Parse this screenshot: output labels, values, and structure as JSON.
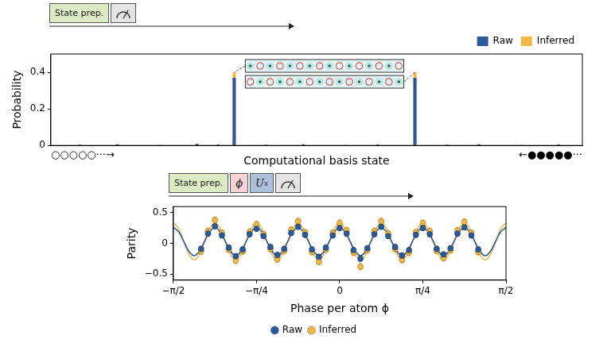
{
  "chart_data": [
    {
      "type": "bar",
      "circuit": [
        "State prep."
      ],
      "x_label": "Computational basis state",
      "y_label": "Probability",
      "annotations": [
        "○○○○○···→",
        "←●●●●●···"
      ],
      "categories": [
        null,
        null,
        null,
        null,
        null,
        null,
        null,
        null,
        null,
        null,
        null,
        null,
        null,
        null,
        null,
        null,
        null,
        null,
        null,
        null,
        null,
        null,
        null,
        null,
        null,
        null,
        null,
        null,
        null,
        null,
        null,
        null,
        null,
        null,
        null,
        null,
        null,
        null,
        null,
        null,
        null,
        null,
        null,
        null,
        null,
        null,
        null,
        null,
        null,
        null,
        null,
        null,
        null,
        null,
        null,
        null,
        null,
        null,
        null,
        null,
        null,
        null,
        null,
        null,
        null,
        null,
        null,
        null,
        null,
        null,
        null,
        null,
        null,
        null,
        null,
        null,
        null,
        null,
        null,
        null,
        null,
        null,
        null,
        null,
        null,
        null,
        null,
        null,
        null,
        null,
        null,
        null,
        null,
        null,
        null,
        null,
        null,
        null,
        null,
        null
      ],
      "series": [
        {
          "name": "Raw",
          "color": "#2b5a9c",
          "values": [
            0,
            0,
            0,
            0,
            0,
            0.004,
            0,
            0,
            0,
            0,
            0,
            0,
            0.006,
            0,
            0,
            0,
            0,
            0,
            0,
            0,
            0.003,
            0,
            0,
            0,
            0,
            0,
            0,
            0.008,
            0,
            0,
            0,
            0.005,
            0,
            0,
            0.37,
            0,
            0,
            0,
            0,
            0,
            0.004,
            0,
            0,
            0,
            0,
            0,
            0,
            0.006,
            0,
            0,
            0,
            0,
            0,
            0,
            0,
            0.003,
            0,
            0,
            0,
            0,
            0,
            0.005,
            0,
            0,
            0,
            0,
            0,
            0,
            0.37,
            0,
            0,
            0,
            0,
            0,
            0.004,
            0,
            0,
            0,
            0,
            0,
            0.006,
            0,
            0,
            0,
            0,
            0,
            0,
            0,
            0.003,
            0,
            0,
            0,
            0,
            0,
            0,
            0.005,
            0,
            0,
            0,
            0
          ]
        },
        {
          "name": "Inferred",
          "color": "#f4b942",
          "values": [
            0,
            0,
            0,
            0,
            0,
            0.004,
            0,
            0,
            0,
            0,
            0,
            0,
            0.006,
            0,
            0,
            0,
            0,
            0,
            0,
            0,
            0.003,
            0,
            0,
            0,
            0,
            0,
            0,
            0.008,
            0,
            0,
            0,
            0.005,
            0,
            0,
            0.4,
            0,
            0,
            0,
            0,
            0,
            0.004,
            0,
            0,
            0,
            0,
            0,
            0,
            0.006,
            0,
            0,
            0,
            0,
            0,
            0,
            0,
            0.003,
            0,
            0,
            0,
            0,
            0,
            0.005,
            0,
            0,
            0,
            0,
            0,
            0,
            0.4,
            0,
            0,
            0,
            0,
            0,
            0.004,
            0,
            0,
            0,
            0,
            0,
            0.006,
            0,
            0,
            0,
            0,
            0,
            0,
            0,
            0.003,
            0,
            0,
            0,
            0,
            0,
            0,
            0.005,
            0,
            0,
            0,
            0
          ]
        }
      ],
      "ylim": [
        0,
        0.5
      ],
      "yticks": [
        0,
        0.2,
        0.4
      ],
      "tick_labels": "y",
      "legend": "top-right",
      "grid": false
    },
    {
      "type": "scatter",
      "circuit": [
        "State prep.",
        "ϕ",
        {
          "text": "U",
          "subscript": "x"
        }
      ],
      "x_label": "Phase per atom ϕ",
      "y_label": "Parity",
      "series": [
        {
          "name": "Raw",
          "color": "#2b5a9c",
          "marker": "circle",
          "error": 0.04,
          "x": [
            -1.309,
            -1.2435,
            -1.1781,
            -1.1126,
            -1.0472,
            -0.9817,
            -0.9163,
            -0.8508,
            -0.7854,
            -0.7199,
            -0.6545,
            -0.589,
            -0.5236,
            -0.4581,
            -0.3927,
            -0.3272,
            -0.2618,
            -0.1963,
            -0.1309,
            -0.0654,
            0,
            0.0654,
            0.1309,
            0.1963,
            0.2618,
            0.3272,
            0.3927,
            0.4581,
            0.5236,
            0.589,
            0.6545,
            0.7199,
            0.7854,
            0.8508,
            0.9163,
            0.9817,
            1.0472,
            1.1126,
            1.1781,
            1.2435,
            1.309
          ],
          "values": [
            -0.09,
            0.16,
            0.28,
            0.13,
            -0.07,
            -0.21,
            -0.1,
            0.15,
            0.24,
            0.12,
            -0.06,
            -0.19,
            -0.09,
            0.17,
            0.27,
            0.14,
            -0.1,
            -0.22,
            -0.07,
            0.13,
            0.25,
            0.16,
            -0.11,
            -0.25,
            -0.08,
            0.15,
            0.27,
            0.12,
            -0.06,
            -0.2,
            -0.11,
            0.14,
            0.25,
            0.15,
            -0.09,
            -0.18,
            -0.08,
            0.16,
            0.26,
            0.13,
            -0.1
          ],
          "fit": {
            "x": [
              -1.5708,
              -1.5217,
              -1.4726,
              -1.4235,
              -1.3744,
              -1.3254,
              -1.2763,
              -1.2272,
              -1.1781,
              -1.129,
              -1.0799,
              -1.0308,
              -0.9817,
              -0.9327,
              -0.8836,
              -0.8345,
              -0.7854,
              -0.7363,
              -0.6872,
              -0.6381,
              -0.589,
              -0.54,
              -0.4909,
              -0.4418,
              -0.3927,
              -0.3436,
              -0.2945,
              -0.2454,
              -0.1963,
              -0.1473,
              -0.0982,
              -0.0491,
              0,
              0.0491,
              0.0982,
              0.1473,
              0.1963,
              0.2454,
              0.2945,
              0.3436,
              0.3927,
              0.4418,
              0.4909,
              0.54,
              0.589,
              0.6381,
              0.6872,
              0.7363,
              0.7854,
              0.8345,
              0.8836,
              0.9327,
              0.9817,
              1.0308,
              1.0799,
              1.129,
              1.1781,
              1.2272,
              1.2763,
              1.3254,
              1.3744,
              1.4235,
              1.4726,
              1.5217,
              1.5708
            ],
            "values": [
              0.26,
              0.19,
              0.03,
              -0.13,
              -0.2,
              -0.13,
              0.03,
              0.19,
              0.26,
              0.19,
              0.03,
              -0.13,
              -0.2,
              -0.13,
              0.03,
              0.19,
              0.26,
              0.19,
              0.03,
              -0.13,
              -0.2,
              -0.13,
              0.03,
              0.19,
              0.26,
              0.19,
              0.03,
              -0.13,
              -0.2,
              -0.13,
              0.03,
              0.19,
              0.26,
              0.19,
              0.03,
              -0.13,
              -0.2,
              -0.13,
              0.03,
              0.19,
              0.26,
              0.19,
              0.03,
              -0.13,
              -0.2,
              -0.13,
              0.03,
              0.19,
              0.26,
              0.19,
              0.03,
              -0.13,
              -0.2,
              -0.13,
              0.03,
              0.19,
              0.26,
              0.19,
              0.03,
              -0.13,
              -0.2,
              -0.13,
              0.03,
              0.19,
              0.26
            ]
          }
        },
        {
          "name": "Inferred",
          "color": "#f4b942",
          "marker": "circle",
          "error": 0.05,
          "x": [
            -1.309,
            -1.2435,
            -1.1781,
            -1.1126,
            -1.0472,
            -0.9817,
            -0.9163,
            -0.8508,
            -0.7854,
            -0.7199,
            -0.6545,
            -0.589,
            -0.5236,
            -0.4581,
            -0.3927,
            -0.3272,
            -0.2618,
            -0.1963,
            -0.1309,
            -0.0654,
            0,
            0.0654,
            0.1309,
            0.1963,
            0.2618,
            0.3272,
            0.3927,
            0.4581,
            0.5236,
            0.589,
            0.6545,
            0.7199,
            0.7854,
            0.8508,
            0.9163,
            0.9817,
            1.0472,
            1.1126,
            1.1781,
            1.2435,
            1.309
          ],
          "values": [
            -0.13,
            0.2,
            0.38,
            0.17,
            -0.1,
            -0.28,
            -0.13,
            0.19,
            0.31,
            0.15,
            -0.09,
            -0.26,
            -0.12,
            0.22,
            0.36,
            0.18,
            -0.14,
            -0.3,
            -0.1,
            0.17,
            0.33,
            0.21,
            -0.15,
            -0.38,
            -0.11,
            0.2,
            0.36,
            0.16,
            -0.09,
            -0.27,
            -0.15,
            0.18,
            0.33,
            0.2,
            -0.12,
            -0.24,
            -0.11,
            0.21,
            0.35,
            0.17,
            -0.14
          ],
          "fit": {
            "x": [
              -1.5708,
              -1.5217,
              -1.4726,
              -1.4235,
              -1.3744,
              -1.3254,
              -1.2763,
              -1.2272,
              -1.1781,
              -1.129,
              -1.0799,
              -1.0308,
              -0.9817,
              -0.9327,
              -0.8836,
              -0.8345,
              -0.7854,
              -0.7363,
              -0.6872,
              -0.6381,
              -0.589,
              -0.54,
              -0.4909,
              -0.4418,
              -0.3927,
              -0.3436,
              -0.2945,
              -0.2454,
              -0.1963,
              -0.1473,
              -0.0982,
              -0.0491,
              0,
              0.0491,
              0.0982,
              0.1473,
              0.1963,
              0.2454,
              0.2945,
              0.3436,
              0.3927,
              0.4418,
              0.4909,
              0.54,
              0.589,
              0.6381,
              0.6872,
              0.7363,
              0.7854,
              0.8345,
              0.8836,
              0.9327,
              0.9817,
              1.0308,
              1.0799,
              1.129,
              1.1781,
              1.2272,
              1.2763,
              1.3254,
              1.3744,
              1.4235,
              1.4726,
              1.5217,
              1.5708
            ],
            "values": [
              0.33,
              0.24,
              0.03,
              -0.18,
              -0.27,
              -0.18,
              0.03,
              0.24,
              0.33,
              0.24,
              0.03,
              -0.18,
              -0.27,
              -0.18,
              0.03,
              0.24,
              0.33,
              0.24,
              0.03,
              -0.18,
              -0.27,
              -0.18,
              0.03,
              0.24,
              0.33,
              0.24,
              0.03,
              -0.18,
              -0.27,
              -0.18,
              0.03,
              0.24,
              0.33,
              0.24,
              0.03,
              -0.18,
              -0.27,
              -0.18,
              0.03,
              0.24,
              0.33,
              0.24,
              0.03,
              -0.18,
              -0.27,
              -0.18,
              0.03,
              0.24,
              0.33,
              0.24,
              0.03,
              -0.18,
              -0.27,
              -0.18,
              0.03,
              0.24,
              0.33,
              0.24,
              0.03,
              -0.18,
              -0.27,
              -0.18,
              0.03,
              0.24,
              0.33
            ]
          }
        }
      ],
      "xlim": [
        -1.5708,
        1.5708
      ],
      "xticks": [
        {
          "value": -1.5708,
          "label": "−π/2"
        },
        {
          "value": -0.7854,
          "label": "−π/4"
        },
        0,
        {
          "value": 0.7854,
          "label": "π/4"
        },
        {
          "value": 1.5708,
          "label": "π/2"
        }
      ],
      "ylim": [
        -0.6,
        0.6
      ],
      "yticks": [
        {
          "value": -0.5,
          "label": "−0.5"
        },
        0,
        0.5
      ],
      "legend": "bottom",
      "grid": false
    }
  ]
}
